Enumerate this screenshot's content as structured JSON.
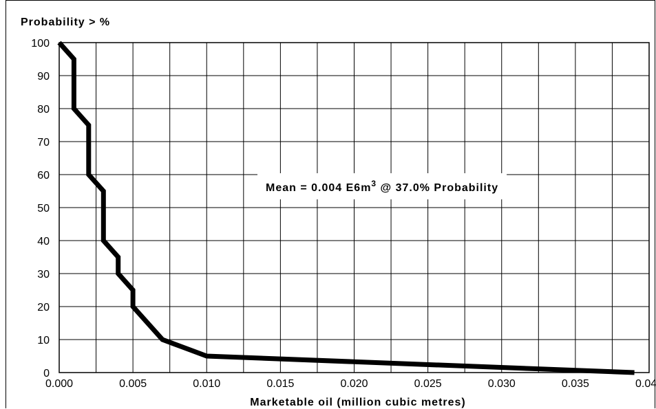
{
  "chart_data": {
    "type": "line",
    "ylabel": "Probability > %",
    "xlabel": "Marketable oil (million cubic metres)",
    "xlim": [
      0,
      0.04
    ],
    "ylim": [
      0,
      100
    ],
    "grid": true,
    "x_ticks": [
      "0.000",
      "0.005",
      "0.010",
      "0.015",
      "0.020",
      "0.025",
      "0.030",
      "0.035",
      "0.040"
    ],
    "y_ticks": [
      "0",
      "10",
      "20",
      "30",
      "40",
      "50",
      "60",
      "70",
      "80",
      "90",
      "100"
    ],
    "series": [
      {
        "x": [
          0,
          0.001,
          0.001,
          0.002,
          0.002,
          0.003,
          0.003,
          0.004,
          0.004,
          0.005,
          0.005,
          0.007,
          0.01,
          0.039
        ],
        "y": [
          100,
          95,
          80,
          75,
          60,
          55,
          40,
          35,
          30,
          25,
          20,
          10,
          5,
          0
        ]
      }
    ],
    "annotation": {
      "text": "Mean = 0.004 E6m",
      "superscript": "3",
      "suffix": " @ 37.0% Probability"
    }
  }
}
